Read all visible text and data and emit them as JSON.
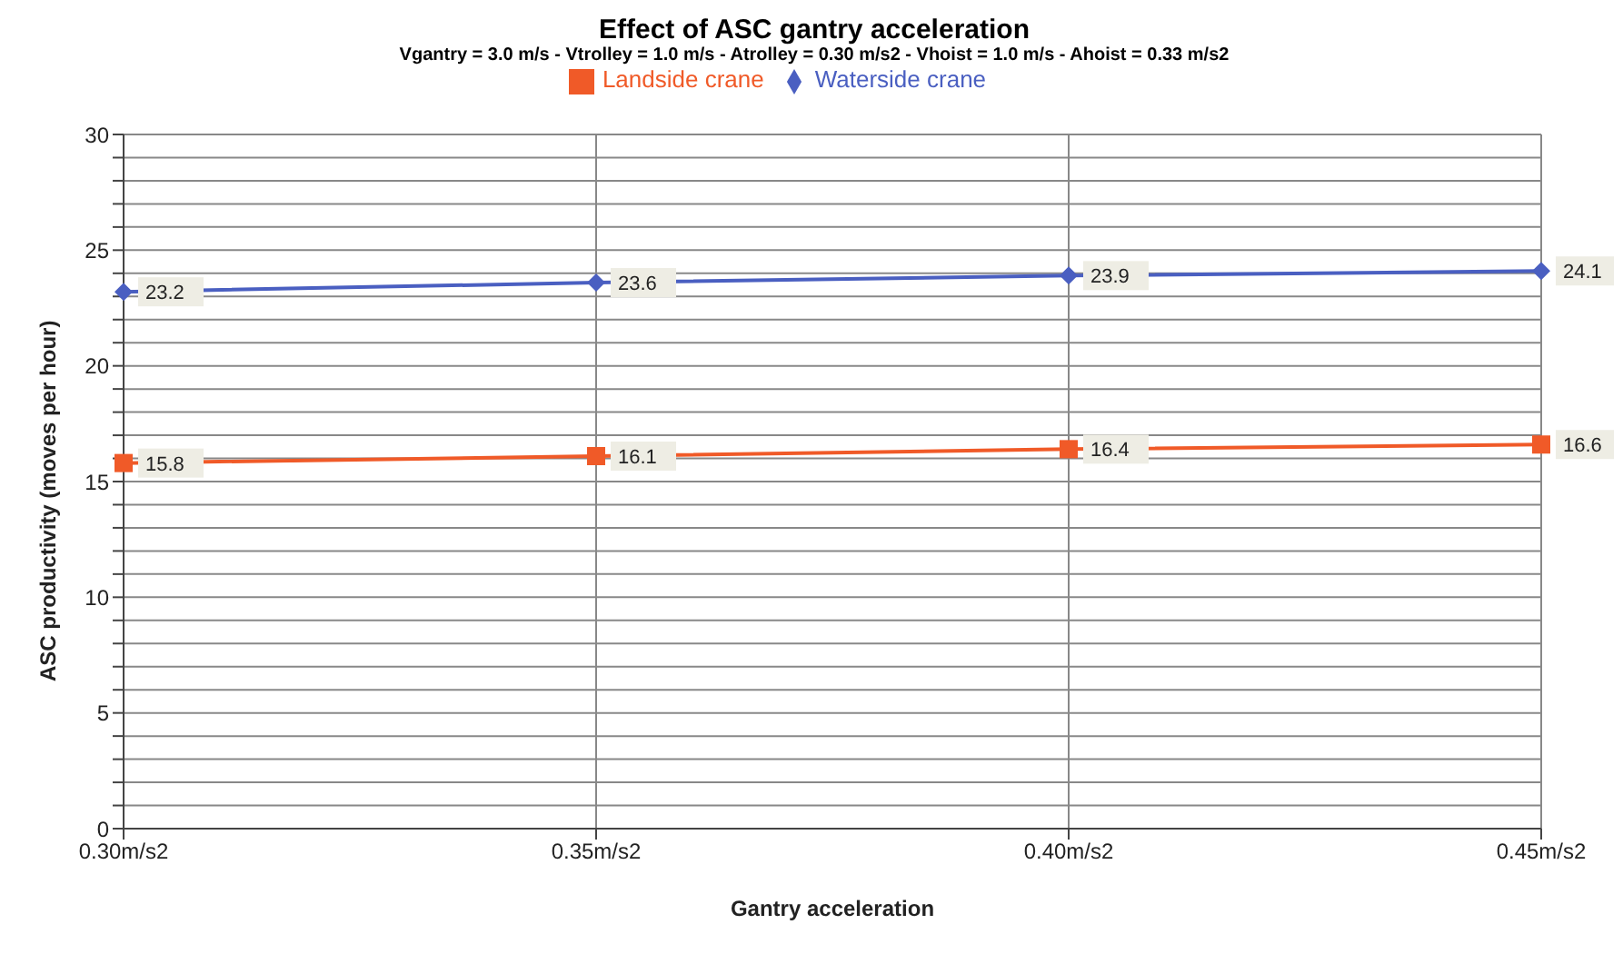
{
  "chart_data": {
    "type": "line",
    "title": "Effect of ASC gantry acceleration",
    "subtitle": "Vgantry = 3.0 m/s - Vtrolley = 1.0 m/s - Atrolley = 0.30 m/s2 - Vhoist = 1.0 m/s - Ahoist = 0.33 m/s2",
    "xlabel": "Gantry acceleration",
    "ylabel": "ASC productivity (moves per hour)",
    "categories": [
      "0.30m/s2",
      "0.35m/s2",
      "0.40m/s2",
      "0.45m/s2"
    ],
    "series": [
      {
        "name": "Waterside crane",
        "color": "#4a5fc1",
        "values": [
          23.2,
          23.6,
          23.9,
          24.1
        ],
        "marker": "diamond"
      },
      {
        "name": "Landside crane",
        "color": "#f05a28",
        "values": [
          15.8,
          16.1,
          16.4,
          16.6
        ],
        "marker": "square"
      }
    ],
    "ylim": [
      0,
      30
    ],
    "yticks": [
      0,
      {
        "value": 1,
        "label": null
      },
      {
        "value": 2,
        "label": null
      },
      {
        "value": 3,
        "label": null
      },
      {
        "value": 4,
        "label": null
      },
      5,
      {
        "value": 6,
        "label": null
      },
      {
        "value": 7,
        "label": null
      },
      {
        "value": 8,
        "label": null
      },
      {
        "value": 9,
        "label": null
      },
      10,
      {
        "value": 11,
        "label": null
      },
      {
        "value": 12,
        "label": null
      },
      {
        "value": 13,
        "label": null
      },
      {
        "value": 14,
        "label": null
      },
      15,
      {
        "value": 16,
        "label": null
      },
      {
        "value": 17,
        "label": null
      },
      {
        "value": 18,
        "label": null
      },
      {
        "value": 19,
        "label": null
      },
      20,
      {
        "value": 21,
        "label": null
      },
      {
        "value": 22,
        "label": null
      },
      {
        "value": 23,
        "label": null
      },
      {
        "value": 24,
        "label": null
      },
      25,
      {
        "value": 26,
        "label": null
      },
      {
        "value": 27,
        "label": null
      },
      {
        "value": 28,
        "label": null
      },
      {
        "value": 29,
        "label": null
      },
      30
    ],
    "grid": true,
    "legend": "top",
    "data_labels": true,
    "line_style": "solid"
  }
}
